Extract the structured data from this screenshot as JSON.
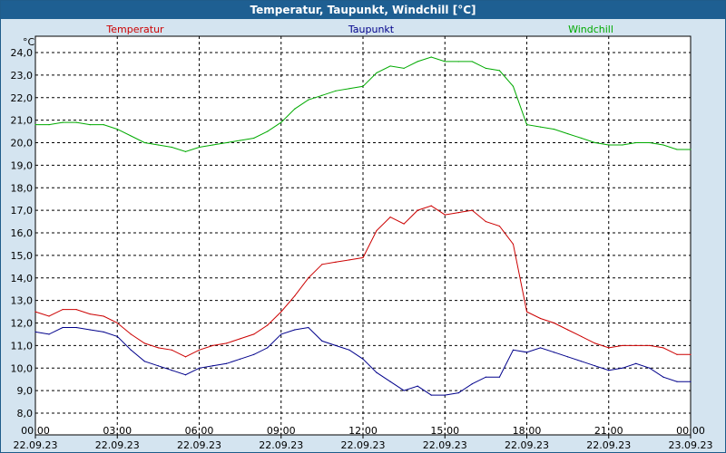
{
  "window": {
    "title": "Temperatur, Taupunkt, Windchill [°C]"
  },
  "chart_data": {
    "type": "line",
    "title": "Temperatur, Taupunkt, Windchill [°C]",
    "ylabel": "°C",
    "xlabel": "",
    "ylim": [
      8.0,
      24.5
    ],
    "yticks": [
      "8,0",
      "9,0",
      "10,0",
      "11,0",
      "12,0",
      "13,0",
      "14,0",
      "15,0",
      "16,0",
      "17,0",
      "18,0",
      "19,0",
      "20,0",
      "21,0",
      "22,0",
      "23,0",
      "24,0"
    ],
    "xlim": [
      0,
      24
    ],
    "xticks": [
      {
        "time": "00:00",
        "date": "22.09.23"
      },
      {
        "time": "03:00",
        "date": "22.09.23"
      },
      {
        "time": "06:00",
        "date": "22.09.23"
      },
      {
        "time": "09:00",
        "date": "22.09.23"
      },
      {
        "time": "12:00",
        "date": "22.09.23"
      },
      {
        "time": "15:00",
        "date": "22.09.23"
      },
      {
        "time": "18:00",
        "date": "22.09.23"
      },
      {
        "time": "21:00",
        "date": "22.09.23"
      },
      {
        "time": "00:00",
        "date": "23.09.23"
      }
    ],
    "grid": true,
    "series": [
      {
        "name": "Temperatur",
        "color": "#cc0000",
        "legend_position": "left",
        "x": [
          0,
          0.5,
          1,
          1.5,
          2,
          2.5,
          3,
          3.5,
          4,
          4.5,
          5,
          5.5,
          6,
          6.5,
          7,
          7.5,
          8,
          8.5,
          9,
          9.5,
          10,
          10.5,
          11,
          11.5,
          12,
          12.5,
          13,
          13.5,
          14,
          14.5,
          15,
          15.5,
          16,
          16.5,
          17,
          17.5,
          18,
          18.5,
          19,
          19.5,
          20,
          20.5,
          21,
          21.5,
          22,
          22.5,
          23,
          23.5,
          24
        ],
        "values": [
          12.5,
          12.3,
          12.6,
          12.6,
          12.4,
          12.3,
          12.0,
          11.5,
          11.1,
          10.9,
          10.8,
          10.5,
          10.8,
          11.0,
          11.1,
          11.3,
          11.5,
          11.9,
          12.5,
          13.2,
          14.0,
          14.6,
          14.7,
          14.8,
          14.9,
          16.1,
          16.7,
          16.4,
          17.0,
          17.2,
          16.8,
          16.9,
          17.0,
          16.5,
          16.3,
          15.5,
          12.5,
          12.2,
          12.0,
          11.7,
          11.4,
          11.1,
          10.9,
          11.0,
          11.0,
          11.0,
          10.9,
          10.6,
          10.6
        ]
      },
      {
        "name": "Taupunkt",
        "color": "#00008b",
        "legend_position": "center",
        "x": [
          0,
          0.5,
          1,
          1.5,
          2,
          2.5,
          3,
          3.5,
          4,
          4.5,
          5,
          5.5,
          6,
          6.5,
          7,
          7.5,
          8,
          8.5,
          9,
          9.5,
          10,
          10.5,
          11,
          11.5,
          12,
          12.5,
          13,
          13.5,
          14,
          14.5,
          15,
          15.5,
          16,
          16.5,
          17,
          17.5,
          18,
          18.5,
          19,
          19.5,
          20,
          20.5,
          21,
          21.5,
          22,
          22.5,
          23,
          23.5,
          24
        ],
        "values": [
          11.6,
          11.5,
          11.8,
          11.8,
          11.7,
          11.6,
          11.4,
          10.8,
          10.3,
          10.1,
          9.9,
          9.7,
          10.0,
          10.1,
          10.2,
          10.4,
          10.6,
          10.9,
          11.5,
          11.7,
          11.8,
          11.2,
          11.0,
          10.8,
          10.4,
          9.8,
          9.4,
          9.0,
          9.2,
          8.8,
          8.8,
          8.9,
          9.3,
          9.6,
          9.6,
          10.8,
          10.7,
          10.9,
          10.7,
          10.5,
          10.3,
          10.1,
          9.9,
          10.0,
          10.2,
          10.0,
          9.6,
          9.4,
          9.4
        ]
      },
      {
        "name": "Windchill",
        "color": "#00aa00",
        "legend_position": "right",
        "x": [
          0,
          0.5,
          1,
          1.5,
          2,
          2.5,
          3,
          3.5,
          4,
          4.5,
          5,
          5.5,
          6,
          6.5,
          7,
          7.5,
          8,
          8.5,
          9,
          9.5,
          10,
          10.5,
          11,
          11.5,
          12,
          12.5,
          13,
          13.5,
          14,
          14.5,
          15,
          15.5,
          16,
          16.5,
          17,
          17.5,
          18,
          18.5,
          19,
          19.5,
          20,
          20.5,
          21,
          21.5,
          22,
          22.5,
          23,
          23.5,
          24
        ],
        "values": [
          20.8,
          20.8,
          20.9,
          20.9,
          20.8,
          20.8,
          20.6,
          20.3,
          20.0,
          19.9,
          19.8,
          19.6,
          19.8,
          19.9,
          20.0,
          20.1,
          20.2,
          20.5,
          20.9,
          21.5,
          21.9,
          22.1,
          22.3,
          22.4,
          22.5,
          23.1,
          23.4,
          23.3,
          23.6,
          23.8,
          23.6,
          23.6,
          23.6,
          23.3,
          23.2,
          22.5,
          20.8,
          20.7,
          20.6,
          20.4,
          20.2,
          20.0,
          19.9,
          19.9,
          20.0,
          20.0,
          19.9,
          19.7,
          19.7
        ]
      }
    ]
  }
}
